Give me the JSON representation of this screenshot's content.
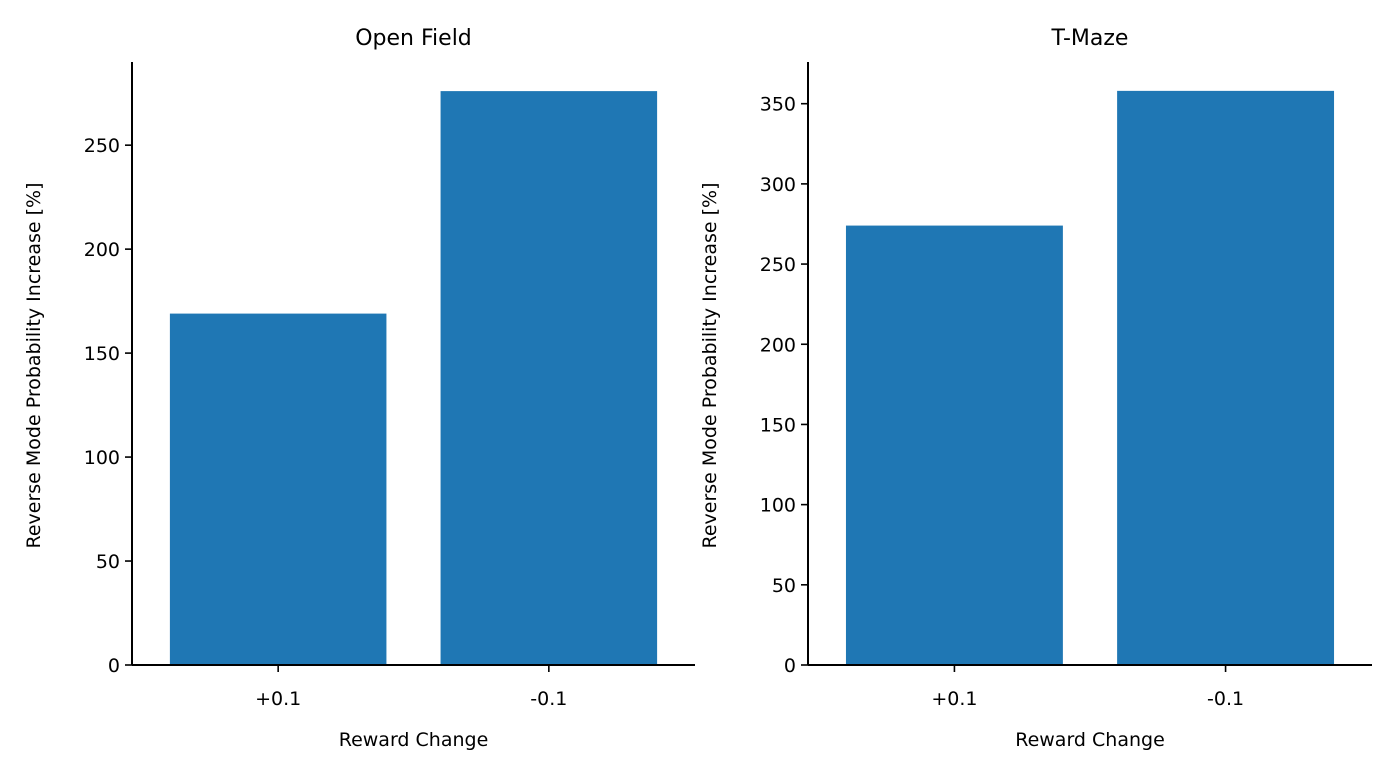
{
  "chart_data": [
    {
      "type": "bar",
      "title": "Open Field",
      "xlabel": "Reward Change",
      "ylabel": "Reverse Mode Probability Increase [%]",
      "categories": [
        "+0.1",
        "-0.1"
      ],
      "values": [
        169,
        276
      ],
      "ylim": [
        0,
        290
      ],
      "yticks": [
        0,
        50,
        100,
        150,
        200,
        250
      ],
      "grid": false,
      "legend": "none",
      "bar_color": "#1f77b4"
    },
    {
      "type": "bar",
      "title": "T-Maze",
      "xlabel": "Reward Change",
      "ylabel": "Reverse Mode Probability Increase [%]",
      "categories": [
        "+0.1",
        "-0.1"
      ],
      "values": [
        274,
        358
      ],
      "ylim": [
        0,
        376
      ],
      "yticks": [
        0,
        50,
        100,
        150,
        200,
        250,
        300,
        350
      ],
      "grid": false,
      "legend": "none",
      "bar_color": "#1f77b4"
    }
  ]
}
